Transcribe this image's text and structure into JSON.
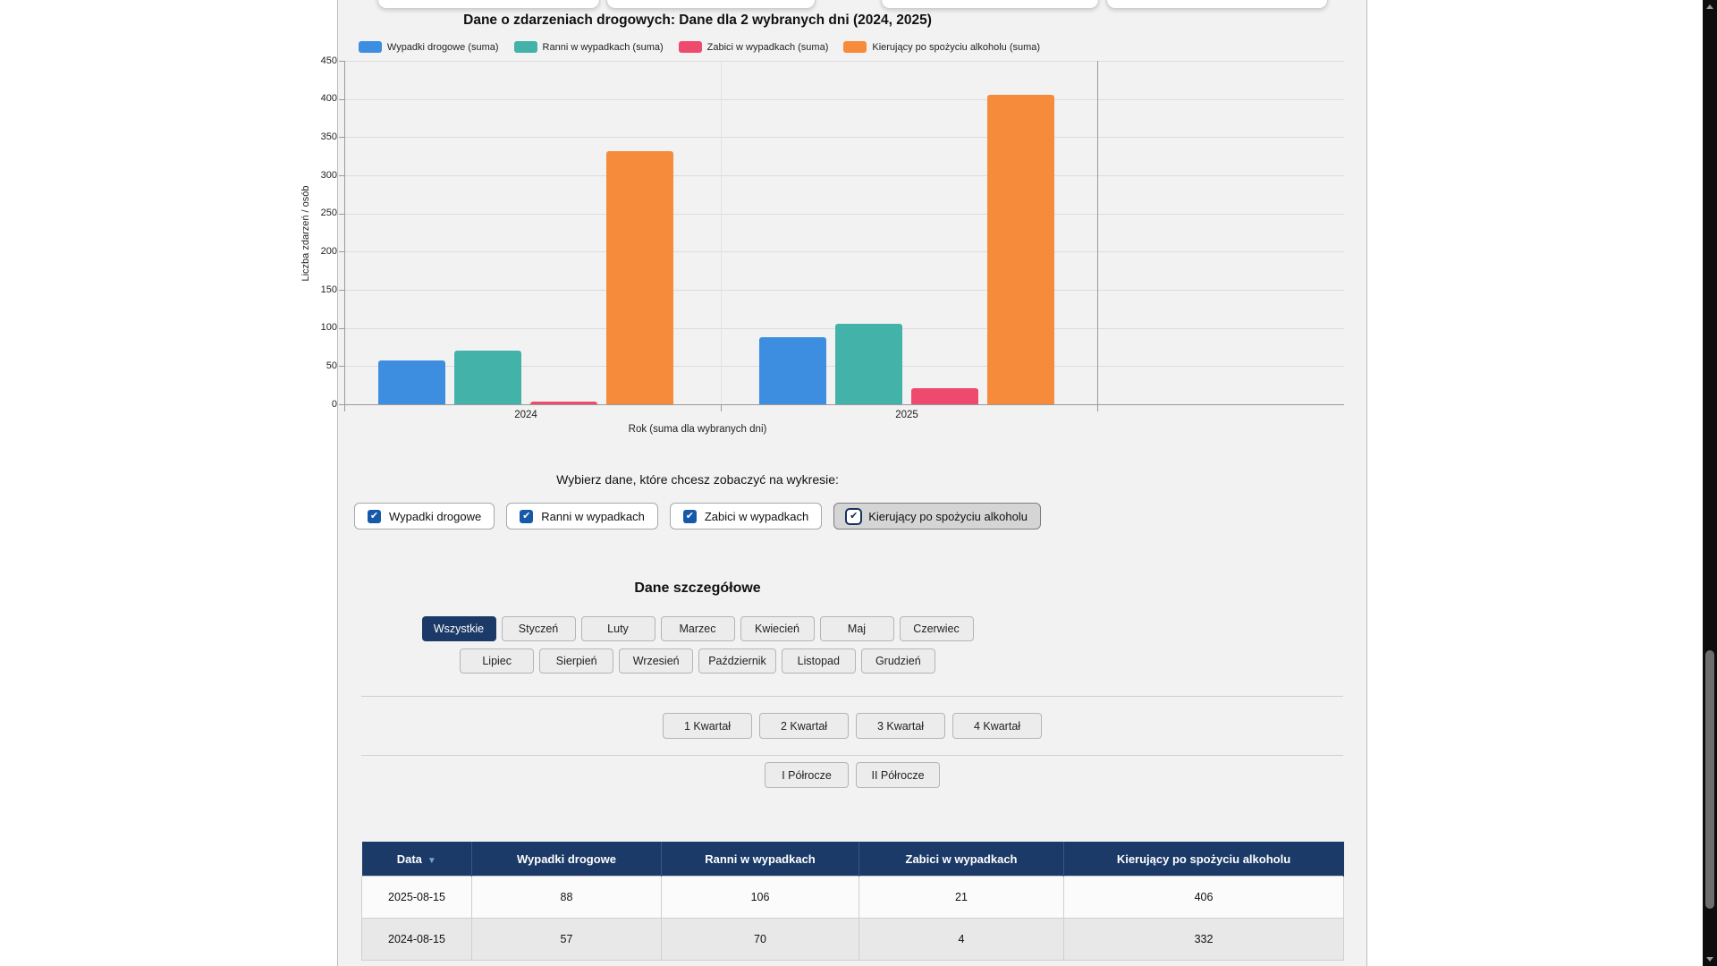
{
  "chart": {
    "title": "Dane o zdarzeniach drogowych: Dane dla 2 wybranych dni (2024, 2025)",
    "y_axis_label": "Liczba zdarzeń / osób",
    "x_axis_label": "Rok (suma dla wybranych dni)"
  },
  "chart_data": {
    "type": "bar",
    "title": "Dane o zdarzeniach drogowych: Dane dla 2 wybranych dni (2024, 2025)",
    "categories": [
      "2024",
      "2025"
    ],
    "series": [
      {
        "name": "Wypadki drogowe (suma)",
        "color": "#3d8ee0",
        "values": [
          57,
          88
        ]
      },
      {
        "name": "Ranni w wypadkach (suma)",
        "color": "#43b3a9",
        "values": [
          70,
          106
        ]
      },
      {
        "name": "Zabici w wypadkach (suma)",
        "color": "#ee4a6e",
        "values": [
          4,
          21
        ]
      },
      {
        "name": "Kierujący po spożyciu alkoholu (suma)",
        "color": "#f68b3c",
        "values": [
          332,
          406
        ]
      }
    ],
    "xlabel": "Rok (suma dla wybranych dni)",
    "ylabel": "Liczba zdarzeń / osób",
    "ylim": [
      0,
      450
    ],
    "y_ticks": [
      0,
      50,
      100,
      150,
      200,
      250,
      300,
      350,
      400,
      450
    ],
    "grid": true,
    "legend_position": "top"
  },
  "filter_section": {
    "heading": "Wybierz dane, które chcesz zobaczyć na wykresie:",
    "checkboxes": [
      {
        "label": "Wypadki drogowe",
        "checked": true,
        "focused": false
      },
      {
        "label": "Ranni w wypadkach",
        "checked": true,
        "focused": false
      },
      {
        "label": "Zabici w wypadkach",
        "checked": true,
        "focused": false
      },
      {
        "label": "Kierujący po spożyciu alkoholu",
        "checked": true,
        "focused": true
      }
    ],
    "check_glyph": "✔"
  },
  "details_section": {
    "heading": "Dane szczegółowe",
    "month_buttons_row1": [
      "Wszystkie",
      "Styczeń",
      "Luty",
      "Marzec",
      "Kwiecień",
      "Maj",
      "Czerwiec"
    ],
    "month_buttons_row2": [
      "Lipiec",
      "Sierpień",
      "Wrzesień",
      "Październik",
      "Listopad",
      "Grudzień"
    ],
    "active_button": "Wszystkie",
    "quarter_buttons": [
      "1 Kwartał",
      "2 Kwartał",
      "3 Kwartał",
      "4 Kwartał"
    ],
    "half_year_buttons": [
      "I Półrocze",
      "II Półrocze"
    ]
  },
  "table": {
    "columns": [
      "Data",
      "Wypadki drogowe",
      "Ranni w wypadkach",
      "Zabici w wypadkach",
      "Kierujący po spożyciu alkoholu"
    ],
    "sort_column": "Data",
    "sort_icon": "▼",
    "rows": [
      [
        "2025-08-15",
        "88",
        "106",
        "21",
        "406"
      ],
      [
        "2024-08-15",
        "57",
        "70",
        "4",
        "332"
      ]
    ]
  },
  "colors": {
    "accent_navy": "#1b3a67",
    "checkbox_blue": "#1659a8",
    "content_background": "#f2f2f3",
    "series_blue": "#3d8ee0",
    "series_teal": "#43b3a9",
    "series_pink": "#ee4a6e",
    "series_orange": "#f68b3c",
    "sort_arrow_blue": "#7a9fd4"
  }
}
